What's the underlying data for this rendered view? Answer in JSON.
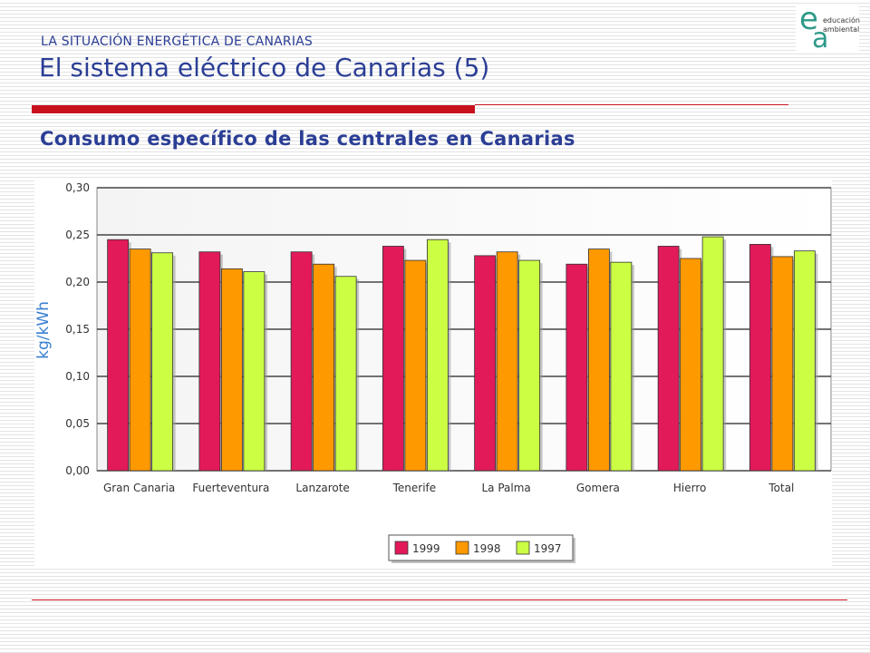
{
  "header": {
    "kicker": "LA SITUACIÓN ENERGÉTICA DE CANARIAS",
    "title": "El sistema eléctrico de Canarias (5)",
    "subtitle": "Consumo específico de las centrales en Canarias"
  },
  "logo": {
    "letters": [
      "e",
      "a"
    ],
    "line1": "educación",
    "line2": "ambiental"
  },
  "colors": {
    "accent": "#c9111e",
    "title": "#2b3e95"
  },
  "chart_data": {
    "type": "bar",
    "ylabel": "kg/kWh",
    "ylim": [
      0,
      0.3
    ],
    "yticks": [
      "0,00",
      "0,05",
      "0,10",
      "0,15",
      "0,20",
      "0,25",
      "0,30"
    ],
    "grid": true,
    "legend_position": "bottom",
    "categories": [
      "Gran Canaria",
      "Fuerteventura",
      "Lanzarote",
      "Tenerife",
      "La Palma",
      "Gomera",
      "Hierro",
      "Total"
    ],
    "series": [
      {
        "name": "1999",
        "color": "#e21a5a",
        "values": [
          0.245,
          0.232,
          0.232,
          0.238,
          0.228,
          0.219,
          0.238,
          0.24
        ]
      },
      {
        "name": "1998",
        "color": "#ff9900",
        "values": [
          0.235,
          0.214,
          0.219,
          0.223,
          0.232,
          0.235,
          0.225,
          0.227
        ]
      },
      {
        "name": "1997",
        "color": "#ccff44",
        "values": [
          0.231,
          0.211,
          0.206,
          0.245,
          0.223,
          0.221,
          0.248,
          0.233
        ]
      }
    ]
  }
}
